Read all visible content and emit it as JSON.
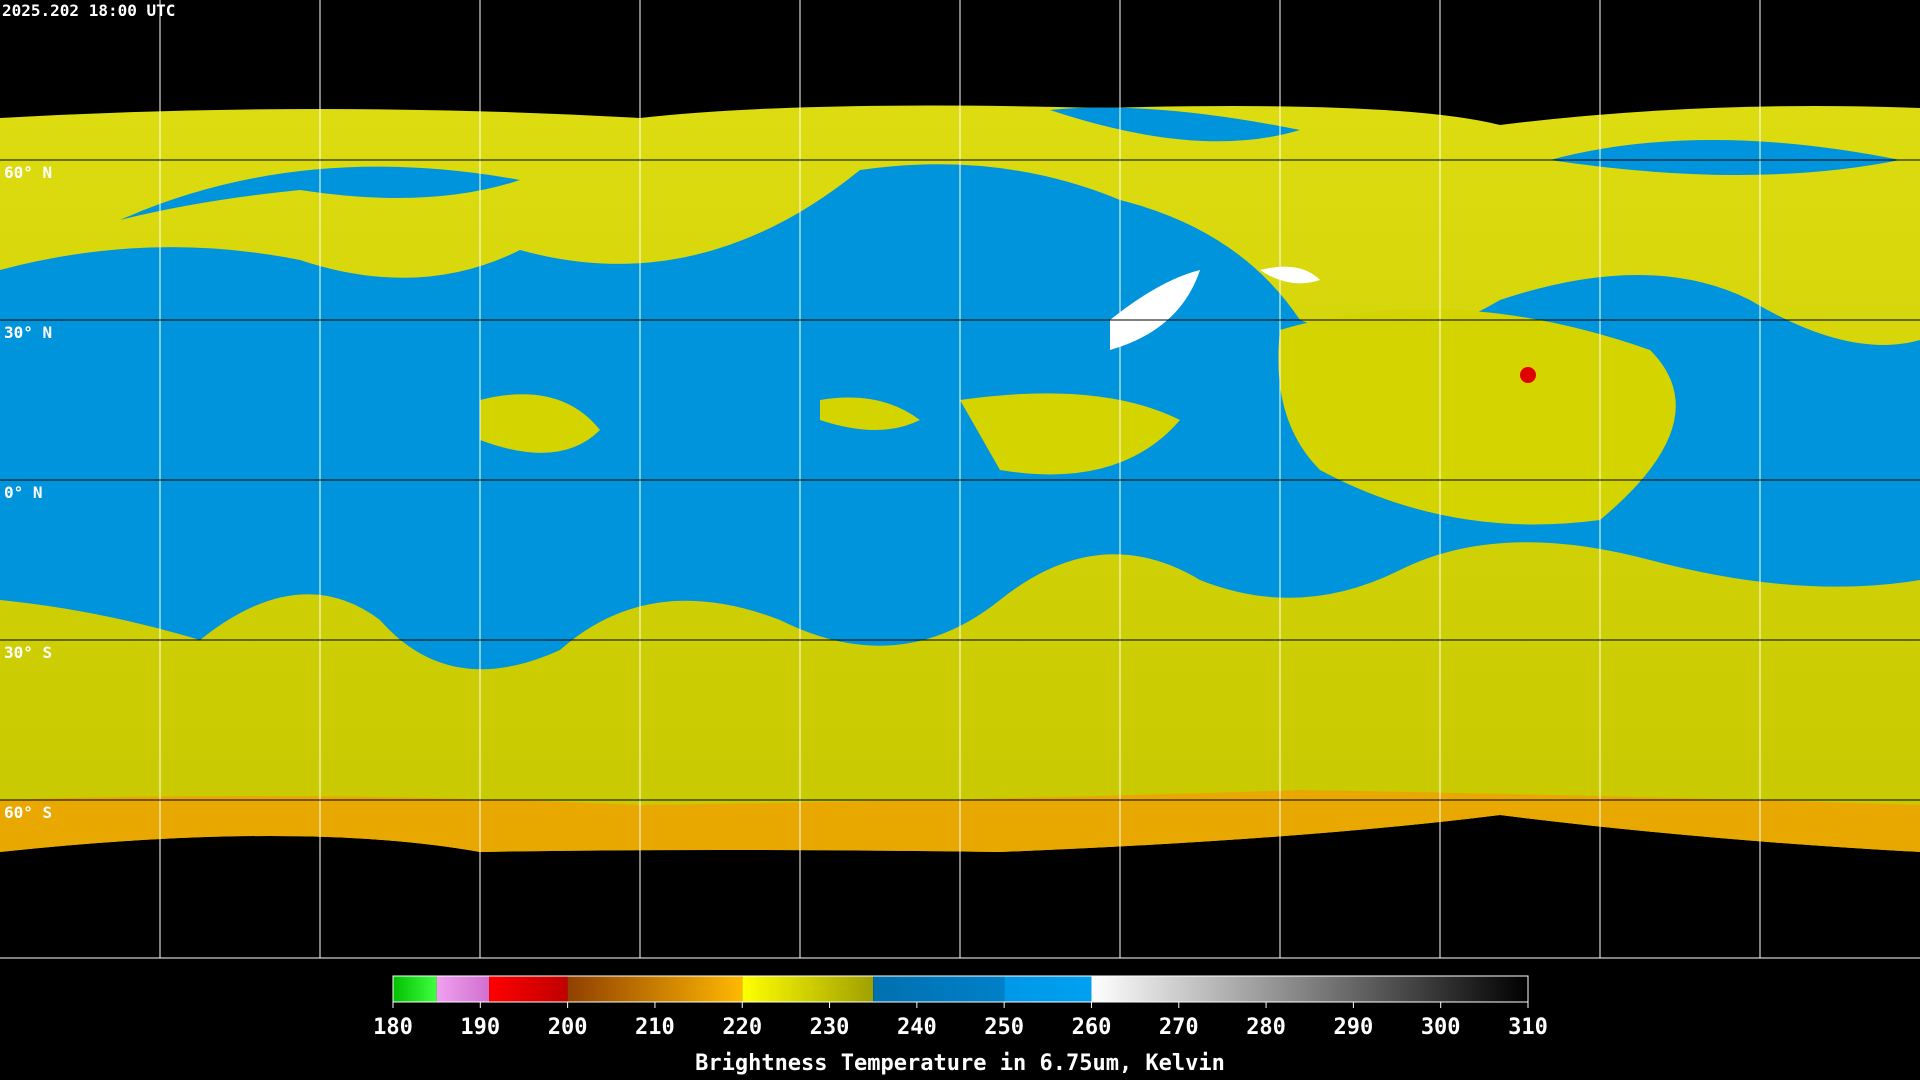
{
  "header": {
    "title": "2025.202 18:00 UTC"
  },
  "map": {
    "latitude_labels": [
      "60° N",
      "30° N",
      "0° N",
      "30° S",
      "60° S"
    ]
  },
  "colorbar": {
    "range": [
      180,
      310
    ],
    "ticks": [
      180,
      190,
      200,
      210,
      220,
      230,
      240,
      250,
      260,
      270,
      280,
      290,
      300,
      310
    ],
    "segments": [
      {
        "from": 180,
        "to": 185,
        "colors": [
          "#00c000",
          "#40ff40"
        ]
      },
      {
        "from": 185,
        "to": 191,
        "colors": [
          "#f0a0f0",
          "#d070d0"
        ]
      },
      {
        "from": 191,
        "to": 200,
        "colors": [
          "#ff0000",
          "#c00000"
        ]
      },
      {
        "from": 200,
        "to": 220,
        "colors": [
          "#904000",
          "#ffb800"
        ]
      },
      {
        "from": 220,
        "to": 235,
        "colors": [
          "#ffff00",
          "#a0a000"
        ]
      },
      {
        "from": 235,
        "to": 250,
        "colors": [
          "#0070b0",
          "#0080c8"
        ]
      },
      {
        "from": 250,
        "to": 260,
        "colors": [
          "#0098e8",
          "#00a0f0"
        ]
      },
      {
        "from": 260,
        "to": 310,
        "colors": [
          "#ffffff",
          "#000000"
        ]
      }
    ],
    "label": "Brightness Temperature in 6.75um, Kelvin"
  }
}
